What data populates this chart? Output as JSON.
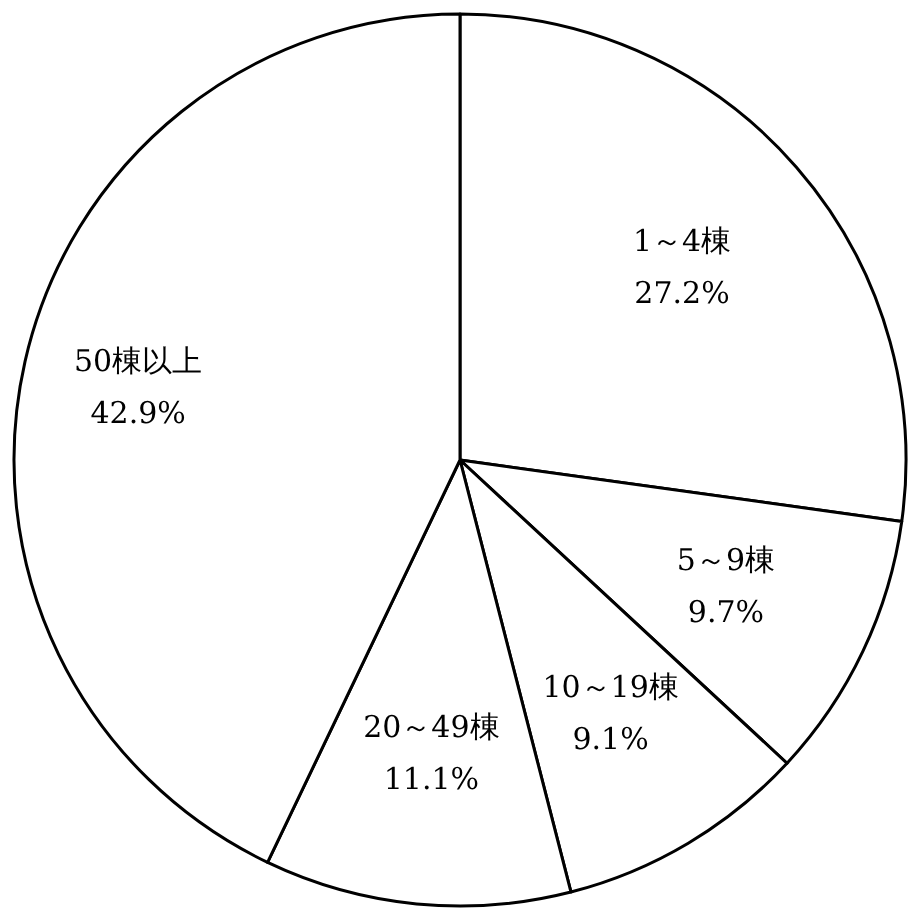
{
  "chart_data": {
    "type": "pie",
    "categories": [
      "1～4棟",
      "5～9棟",
      "10～19棟",
      "20～49棟",
      "50棟以上"
    ],
    "values": [
      27.2,
      9.7,
      9.1,
      11.1,
      42.9
    ],
    "value_labels": [
      "27.2%",
      "9.7%",
      "9.1%",
      "11.1%",
      "42.9%"
    ],
    "colors": [
      "#ffffff",
      "#ffffff",
      "#ffffff",
      "#ffffff",
      "#ffffff"
    ]
  }
}
